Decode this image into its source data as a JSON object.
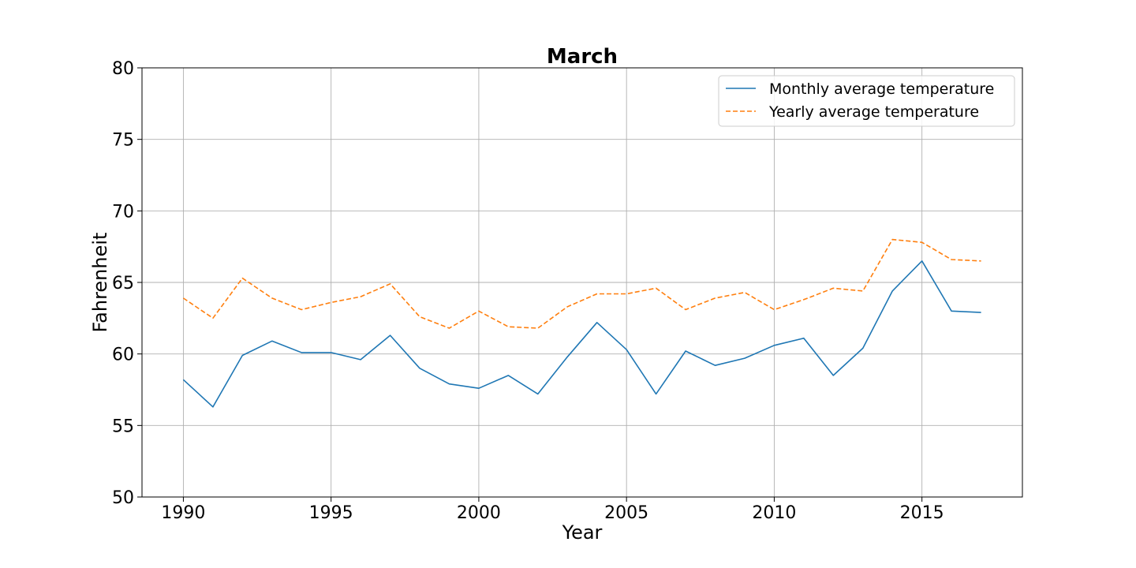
{
  "chart_data": {
    "type": "line",
    "title": "March",
    "xlabel": "Year",
    "ylabel": "Fahrenheit",
    "xlim": [
      1988.6,
      2018.4
    ],
    "ylim": [
      50,
      80
    ],
    "xticks": [
      1990,
      1995,
      2000,
      2005,
      2010,
      2015
    ],
    "yticks": [
      50,
      55,
      60,
      65,
      70,
      75,
      80
    ],
    "grid": true,
    "legend": "top-right",
    "x": [
      1990,
      1991,
      1992,
      1993,
      1994,
      1995,
      1996,
      1997,
      1998,
      1999,
      2000,
      2001,
      2002,
      2003,
      2004,
      2005,
      2006,
      2007,
      2008,
      2009,
      2010,
      2011,
      2012,
      2013,
      2014,
      2015,
      2016,
      2017
    ],
    "series": [
      {
        "name": "Monthly average temperature",
        "color": "#1f77b4",
        "style": "solid",
        "values": [
          58.2,
          56.3,
          59.9,
          60.9,
          60.1,
          60.1,
          59.6,
          61.3,
          59.0,
          57.9,
          57.6,
          58.5,
          57.2,
          59.8,
          62.2,
          60.3,
          57.2,
          60.2,
          59.2,
          59.7,
          60.6,
          61.1,
          58.5,
          60.4,
          64.4,
          66.5,
          63.0,
          62.9
        ]
      },
      {
        "name": "Yearly average temperature",
        "color": "#ff7f0e",
        "style": "dashed",
        "values": [
          63.9,
          62.5,
          65.3,
          63.9,
          63.1,
          63.6,
          64.0,
          64.9,
          62.6,
          61.8,
          63.0,
          61.9,
          61.8,
          63.3,
          64.2,
          64.2,
          64.6,
          63.1,
          63.9,
          64.3,
          63.1,
          63.8,
          64.6,
          64.4,
          68.0,
          67.8,
          66.6,
          66.5
        ]
      }
    ]
  }
}
